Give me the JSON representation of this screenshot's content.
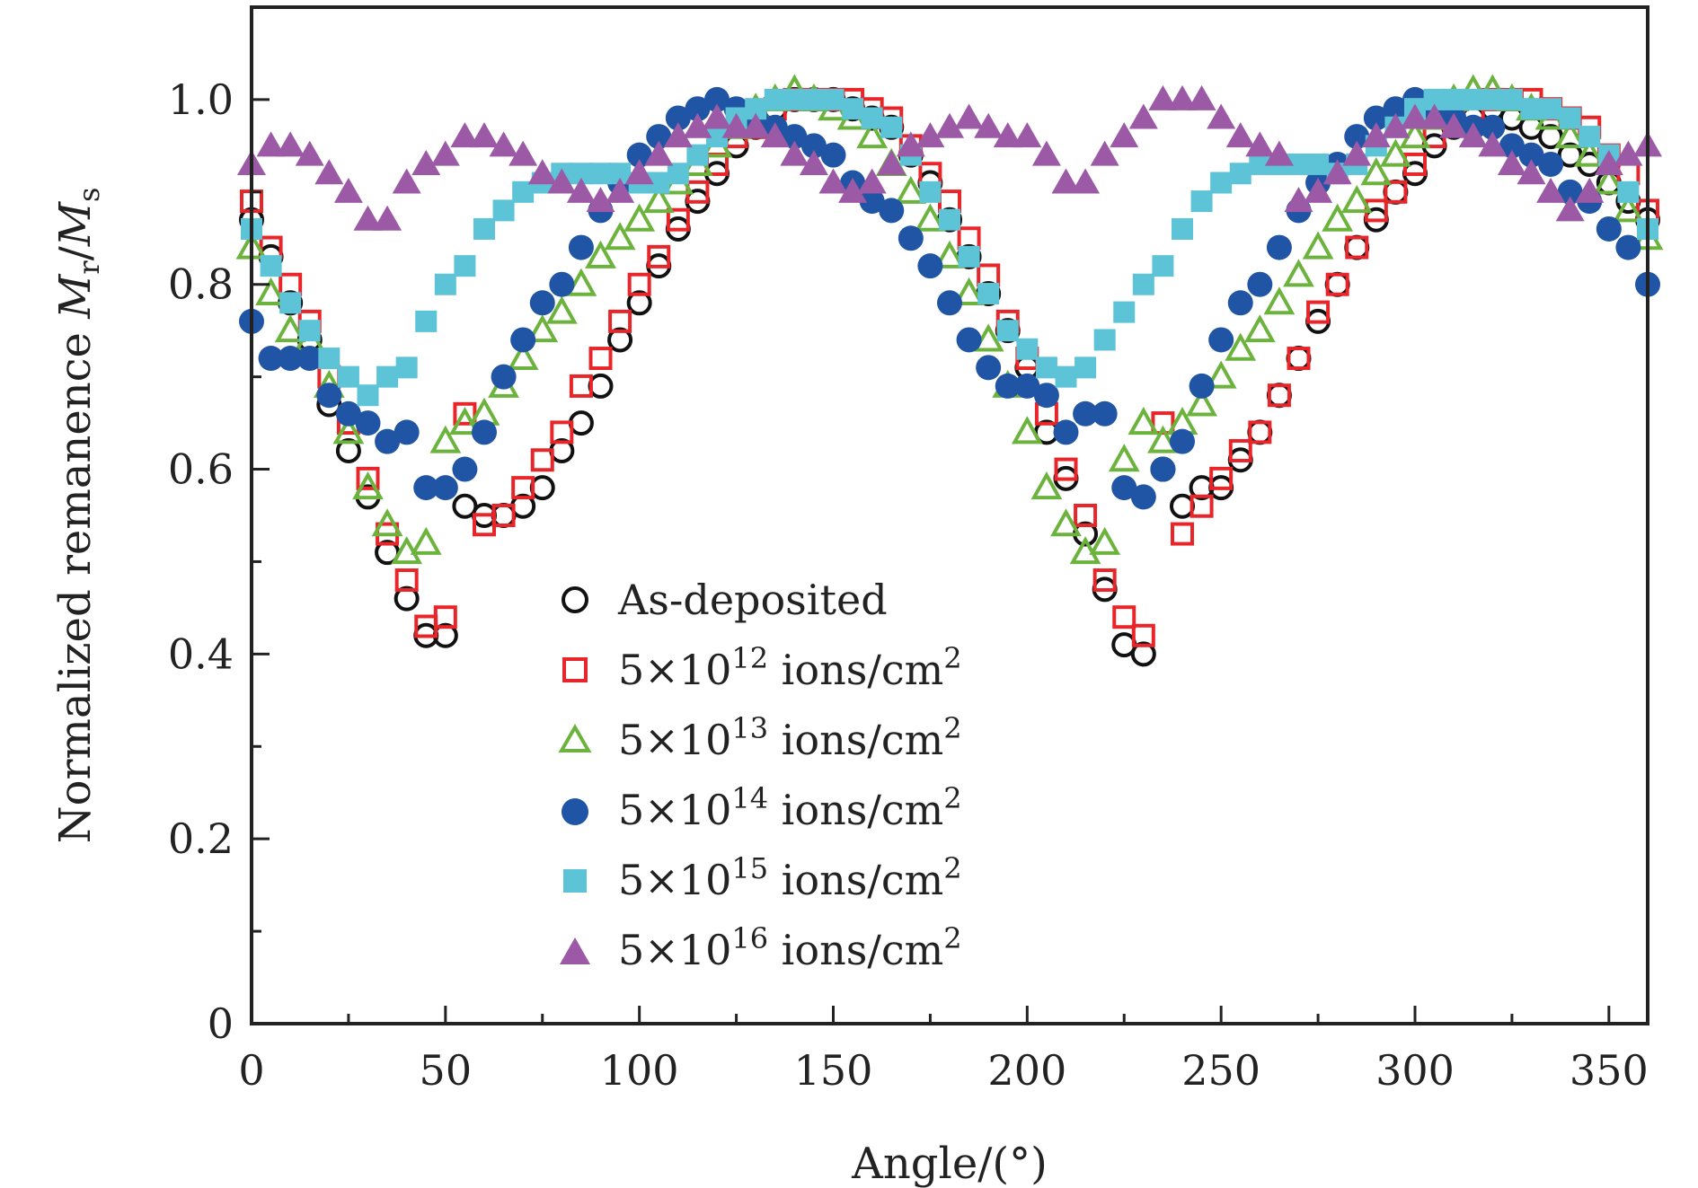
{
  "chart_data": {
    "type": "scatter",
    "title": "",
    "xlabel": "Angle/(°)",
    "ylabel": "Normalized remanence Mr/Ms",
    "ylabel_parts": {
      "base": "Normalized remanence ",
      "m1": "M",
      "sub1": "r",
      "slash": "/",
      "m2": "M",
      "sub2": "s"
    },
    "xlim": [
      0,
      360
    ],
    "ylim": [
      0,
      1.1
    ],
    "xticks": [
      0,
      50,
      100,
      150,
      200,
      250,
      300,
      350
    ],
    "yticks": [
      0,
      0.2,
      0.4,
      0.6,
      0.8,
      1.0
    ],
    "ytick_labels": [
      "0",
      "0.2",
      "0.4",
      "0.6",
      "0.8",
      "1.0"
    ],
    "grid": false,
    "legend_position": "lower-center",
    "series": [
      {
        "name": "As-deposited",
        "label_parts": {
          "text": "As-deposited"
        },
        "marker": "open-circle",
        "color": "#111111",
        "x": [
          0,
          5,
          10,
          15,
          20,
          25,
          30,
          35,
          40,
          45,
          50,
          55,
          60,
          65,
          70,
          75,
          80,
          85,
          90,
          95,
          100,
          105,
          110,
          115,
          120,
          125,
          130,
          135,
          140,
          145,
          150,
          155,
          160,
          165,
          170,
          175,
          180,
          185,
          190,
          195,
          200,
          205,
          210,
          215,
          220,
          225,
          230,
          235,
          240,
          245,
          250,
          255,
          260,
          265,
          270,
          275,
          280,
          285,
          290,
          295,
          300,
          305,
          310,
          315,
          320,
          325,
          330,
          335,
          340,
          345,
          350,
          355,
          360
        ],
        "y": [
          0.87,
          0.83,
          0.78,
          0.74,
          0.67,
          0.62,
          0.57,
          0.51,
          0.46,
          0.42,
          0.42,
          0.56,
          0.55,
          0.55,
          0.56,
          0.58,
          0.62,
          0.65,
          0.69,
          0.74,
          0.78,
          0.82,
          0.86,
          0.89,
          0.92,
          0.95,
          0.97,
          0.99,
          1.0,
          1.0,
          1.0,
          0.99,
          0.98,
          0.97,
          0.94,
          0.91,
          0.87,
          0.83,
          0.79,
          0.75,
          0.71,
          0.64,
          0.59,
          0.53,
          0.47,
          0.41,
          0.4,
          0.6,
          0.56,
          0.58,
          0.58,
          0.61,
          0.64,
          0.68,
          0.72,
          0.76,
          0.8,
          0.84,
          0.87,
          0.9,
          0.92,
          0.95,
          0.97,
          0.98,
          0.99,
          0.98,
          0.97,
          0.96,
          0.94,
          0.93,
          0.91,
          0.89,
          0.87
        ]
      },
      {
        "name": "5×10^12 ions/cm^2",
        "label_parts": {
          "mult": "5×10",
          "exp": "12",
          "unit": " ions/cm",
          "unit_exp": "2"
        },
        "marker": "open-square",
        "color": "#e8262a",
        "x": [
          0,
          5,
          10,
          15,
          20,
          25,
          30,
          35,
          40,
          45,
          50,
          55,
          60,
          65,
          70,
          75,
          80,
          85,
          90,
          95,
          100,
          105,
          110,
          115,
          120,
          125,
          130,
          135,
          140,
          145,
          150,
          155,
          160,
          165,
          170,
          175,
          180,
          185,
          190,
          195,
          200,
          205,
          210,
          215,
          220,
          225,
          230,
          235,
          240,
          245,
          250,
          255,
          260,
          265,
          270,
          275,
          280,
          285,
          290,
          295,
          300,
          305,
          310,
          315,
          320,
          325,
          330,
          335,
          340,
          345,
          350,
          355,
          360
        ],
        "y": [
          0.89,
          0.84,
          0.8,
          0.76,
          0.7,
          0.65,
          0.59,
          0.53,
          0.48,
          0.43,
          0.44,
          0.66,
          0.54,
          0.55,
          0.58,
          0.61,
          0.64,
          0.69,
          0.72,
          0.76,
          0.8,
          0.83,
          0.87,
          0.9,
          0.93,
          0.96,
          0.97,
          0.99,
          1.0,
          1.0,
          1.0,
          1.0,
          0.99,
          0.98,
          0.95,
          0.92,
          0.89,
          0.85,
          0.81,
          0.76,
          0.72,
          0.66,
          0.6,
          0.55,
          0.48,
          0.44,
          0.42,
          0.65,
          0.53,
          0.56,
          0.59,
          0.62,
          0.64,
          0.68,
          0.72,
          0.77,
          0.8,
          0.84,
          0.88,
          0.9,
          0.93,
          0.96,
          0.98,
          0.99,
          1.0,
          1.0,
          1.0,
          0.99,
          0.98,
          0.97,
          0.94,
          0.92,
          0.88
        ]
      },
      {
        "name": "5×10^13 ions/cm^2",
        "label_parts": {
          "mult": "5×10",
          "exp": "13",
          "unit": " ions/cm",
          "unit_exp": "2"
        },
        "marker": "open-triangle",
        "color": "#6cb33e",
        "x": [
          0,
          5,
          10,
          15,
          20,
          25,
          30,
          35,
          40,
          45,
          50,
          55,
          60,
          65,
          70,
          75,
          80,
          85,
          90,
          95,
          100,
          105,
          110,
          115,
          120,
          125,
          130,
          135,
          140,
          145,
          150,
          155,
          160,
          165,
          170,
          175,
          180,
          185,
          190,
          195,
          200,
          205,
          210,
          215,
          220,
          225,
          230,
          235,
          240,
          245,
          250,
          255,
          260,
          265,
          270,
          275,
          280,
          285,
          290,
          295,
          300,
          305,
          310,
          315,
          320,
          325,
          330,
          335,
          340,
          345,
          350,
          355,
          360
        ],
        "y": [
          0.84,
          0.79,
          0.75,
          0.74,
          0.69,
          0.64,
          0.58,
          0.54,
          0.51,
          0.52,
          0.63,
          0.65,
          0.66,
          0.69,
          0.72,
          0.75,
          0.77,
          0.8,
          0.83,
          0.85,
          0.87,
          0.89,
          0.91,
          0.93,
          0.95,
          0.97,
          0.99,
          1.0,
          1.01,
          1.0,
          0.99,
          0.98,
          0.96,
          0.93,
          0.9,
          0.87,
          0.83,
          0.79,
          0.74,
          0.69,
          0.64,
          0.58,
          0.54,
          0.51,
          0.52,
          0.61,
          0.65,
          0.63,
          0.65,
          0.67,
          0.7,
          0.73,
          0.75,
          0.78,
          0.81,
          0.84,
          0.87,
          0.89,
          0.92,
          0.94,
          0.96,
          0.98,
          1.0,
          1.01,
          1.01,
          1.0,
          0.99,
          0.98,
          0.96,
          0.94,
          0.91,
          0.88,
          0.85
        ]
      },
      {
        "name": "5×10^14 ions/cm^2",
        "label_parts": {
          "mult": "5×10",
          "exp": "14",
          "unit": " ions/cm",
          "unit_exp": "2"
        },
        "marker": "filled-circle",
        "color": "#2054a4",
        "x": [
          0,
          5,
          10,
          15,
          20,
          25,
          30,
          35,
          40,
          45,
          50,
          55,
          60,
          65,
          70,
          75,
          80,
          85,
          90,
          95,
          100,
          105,
          110,
          115,
          120,
          125,
          130,
          135,
          140,
          145,
          150,
          155,
          160,
          165,
          170,
          175,
          180,
          185,
          190,
          195,
          200,
          205,
          210,
          215,
          220,
          225,
          230,
          235,
          240,
          245,
          250,
          255,
          260,
          265,
          270,
          275,
          280,
          285,
          290,
          295,
          300,
          305,
          310,
          315,
          320,
          325,
          330,
          335,
          340,
          345,
          350,
          355,
          360
        ],
        "y": [
          0.76,
          0.72,
          0.72,
          0.72,
          0.68,
          0.66,
          0.65,
          0.63,
          0.64,
          0.58,
          0.58,
          0.6,
          0.64,
          0.7,
          0.74,
          0.78,
          0.8,
          0.84,
          0.88,
          0.91,
          0.94,
          0.96,
          0.98,
          0.99,
          1.0,
          0.99,
          0.98,
          0.97,
          0.96,
          0.95,
          0.94,
          0.91,
          0.89,
          0.88,
          0.85,
          0.82,
          0.78,
          0.74,
          0.71,
          0.69,
          0.69,
          0.68,
          0.64,
          0.66,
          0.66,
          0.58,
          0.57,
          0.6,
          0.63,
          0.69,
          0.74,
          0.78,
          0.8,
          0.84,
          0.88,
          0.91,
          0.93,
          0.96,
          0.98,
          0.99,
          1.0,
          0.99,
          0.98,
          0.97,
          0.97,
          0.95,
          0.94,
          0.93,
          0.9,
          0.89,
          0.86,
          0.84,
          0.8
        ]
      },
      {
        "name": "5×10^15 ions/cm^2",
        "label_parts": {
          "mult": "5×10",
          "exp": "15",
          "unit": " ions/cm",
          "unit_exp": "2"
        },
        "marker": "filled-square",
        "color": "#5cc4d6",
        "x": [
          0,
          5,
          10,
          15,
          20,
          25,
          30,
          35,
          40,
          45,
          50,
          55,
          60,
          65,
          70,
          75,
          80,
          85,
          90,
          95,
          100,
          105,
          110,
          115,
          120,
          125,
          130,
          135,
          140,
          145,
          150,
          155,
          160,
          165,
          170,
          175,
          180,
          185,
          190,
          195,
          200,
          205,
          210,
          215,
          220,
          225,
          230,
          235,
          240,
          245,
          250,
          255,
          260,
          265,
          270,
          275,
          280,
          285,
          290,
          295,
          300,
          305,
          310,
          315,
          320,
          325,
          330,
          335,
          340,
          345,
          350,
          355,
          360
        ],
        "y": [
          0.86,
          0.82,
          0.78,
          0.75,
          0.72,
          0.7,
          0.68,
          0.7,
          0.71,
          0.76,
          0.8,
          0.82,
          0.86,
          0.88,
          0.9,
          0.91,
          0.92,
          0.92,
          0.92,
          0.92,
          0.91,
          0.91,
          0.92,
          0.94,
          0.96,
          0.98,
          0.99,
          1.0,
          1.0,
          1.0,
          1.0,
          0.99,
          0.98,
          0.97,
          0.94,
          0.9,
          0.87,
          0.83,
          0.79,
          0.75,
          0.73,
          0.71,
          0.7,
          0.71,
          0.74,
          0.77,
          0.8,
          0.82,
          0.86,
          0.89,
          0.91,
          0.92,
          0.93,
          0.93,
          0.93,
          0.93,
          0.92,
          0.93,
          0.95,
          0.97,
          0.99,
          1.0,
          1.0,
          1.0,
          1.0,
          1.0,
          0.99,
          0.99,
          0.98,
          0.96,
          0.94,
          0.9,
          0.86
        ]
      },
      {
        "name": "5×10^16 ions/cm^2",
        "label_parts": {
          "mult": "5×10",
          "exp": "16",
          "unit": " ions/cm",
          "unit_exp": "2"
        },
        "marker": "filled-triangle",
        "color": "#9b59a6",
        "x": [
          0,
          5,
          10,
          15,
          20,
          25,
          30,
          35,
          40,
          45,
          50,
          55,
          60,
          65,
          70,
          75,
          80,
          85,
          90,
          95,
          100,
          105,
          110,
          115,
          120,
          125,
          130,
          135,
          140,
          145,
          150,
          155,
          160,
          165,
          170,
          175,
          180,
          185,
          190,
          195,
          200,
          205,
          210,
          215,
          220,
          225,
          230,
          235,
          240,
          245,
          250,
          255,
          260,
          265,
          270,
          275,
          280,
          285,
          290,
          295,
          300,
          305,
          310,
          315,
          320,
          325,
          330,
          335,
          340,
          345,
          350,
          355,
          360
        ],
        "y": [
          0.93,
          0.95,
          0.95,
          0.94,
          0.92,
          0.9,
          0.87,
          0.87,
          0.91,
          0.93,
          0.94,
          0.96,
          0.96,
          0.95,
          0.94,
          0.92,
          0.91,
          0.9,
          0.89,
          0.9,
          0.92,
          0.94,
          0.96,
          0.97,
          0.98,
          0.97,
          0.97,
          0.96,
          0.94,
          0.93,
          0.91,
          0.9,
          0.91,
          0.93,
          0.95,
          0.96,
          0.97,
          0.98,
          0.97,
          0.96,
          0.96,
          0.94,
          0.91,
          0.91,
          0.94,
          0.96,
          0.98,
          1.0,
          1.0,
          1.0,
          0.98,
          0.96,
          0.95,
          0.94,
          0.89,
          0.9,
          0.92,
          0.94,
          0.96,
          0.97,
          0.98,
          0.98,
          0.97,
          0.96,
          0.95,
          0.93,
          0.92,
          0.9,
          0.88,
          0.9,
          0.93,
          0.94,
          0.95
        ]
      }
    ]
  }
}
